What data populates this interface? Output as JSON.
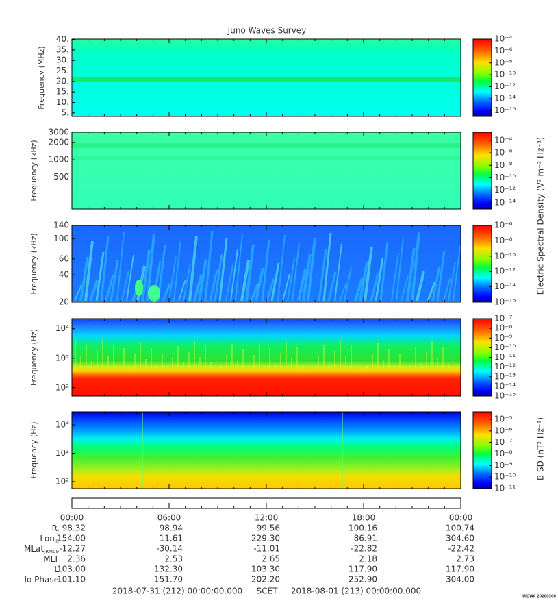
{
  "chart_data": {
    "type": "spectrogram",
    "title": "Juno Waves Survey",
    "panels": [
      {
        "ylabel": "Frequency (MHz)",
        "log": false,
        "ylim": [
          3.3,
          40.2
        ],
        "yticks": [
          {
            "value": 40,
            "label": "40."
          },
          {
            "value": 35,
            "label": "35."
          },
          {
            "value": 30,
            "label": "30."
          },
          {
            "value": 25,
            "label": "25."
          },
          {
            "value": 20,
            "label": "20."
          },
          {
            "value": 15,
            "label": "15."
          },
          {
            "value": 10,
            "label": "10."
          },
          {
            "value": 5,
            "label": "5."
          }
        ],
        "clim": [
          1e-17,
          0.0001
        ],
        "cticks": [
          {
            "value": 0.0001,
            "label": "10⁻⁴"
          },
          {
            "value": 1e-06,
            "label": "10⁻⁶"
          },
          {
            "value": 1e-08,
            "label": "10⁻⁸"
          },
          {
            "value": 1e-10,
            "label": "10⁻¹⁰"
          },
          {
            "value": 1e-12,
            "label": "10⁻¹²"
          },
          {
            "value": 1e-14,
            "label": "10⁻¹⁴"
          },
          {
            "value": 1e-16,
            "label": "10⁻¹⁶"
          }
        ]
      },
      {
        "ylabel": "Frequency (kHz)",
        "log": true,
        "ylim": [
          140,
          3000
        ],
        "yticks": [
          3000,
          2000,
          1000,
          500
        ],
        "clim": [
          1e-15,
          0.002
        ],
        "cticks": [
          {
            "value": 0.0001,
            "label": "10⁻⁴"
          },
          {
            "value": 1e-06,
            "label": "10⁻⁶"
          },
          {
            "value": 1e-08,
            "label": "10⁻⁸"
          },
          {
            "value": 1e-10,
            "label": "10⁻¹⁰"
          },
          {
            "value": 1e-12,
            "label": "10⁻¹²"
          },
          {
            "value": 1e-14,
            "label": "10⁻¹⁴"
          }
        ]
      },
      {
        "ylabel": "Frequency (kHz)",
        "log": true,
        "ylim": [
          20,
          140
        ],
        "yticks": [
          140,
          100,
          60,
          40,
          20
        ],
        "clim": [
          1e-16,
          1e-06
        ],
        "cticks": [
          {
            "value": 1e-06,
            "label": "10⁻⁶"
          },
          {
            "value": 1e-08,
            "label": "10⁻⁸"
          },
          {
            "value": 1e-10,
            "label": "10⁻¹⁰"
          },
          {
            "value": 1e-12,
            "label": "10⁻¹²"
          },
          {
            "value": 1e-14,
            "label": "10⁻¹⁴"
          },
          {
            "value": 1e-16,
            "label": "10⁻¹⁶"
          }
        ]
      },
      {
        "ylabel": "Frequency (Hz)",
        "log": true,
        "ylim": [
          52,
          22000
        ],
        "yticks": [
          {
            "value": 10000,
            "label": "10⁴"
          },
          {
            "value": 1000,
            "label": "10³"
          },
          {
            "value": 100,
            "label": "10²"
          }
        ],
        "clim": [
          1e-15,
          1e-07
        ],
        "cticks": [
          {
            "value": 1e-07,
            "label": "10⁻⁷"
          },
          {
            "value": 1e-08,
            "label": "10⁻⁸"
          },
          {
            "value": 1e-09,
            "label": "10⁻⁹"
          },
          {
            "value": 1e-10,
            "label": "10⁻¹⁰"
          },
          {
            "value": 1e-11,
            "label": "10⁻¹¹"
          },
          {
            "value": 1e-12,
            "label": "10⁻¹²"
          },
          {
            "value": 1e-13,
            "label": "10⁻¹³"
          },
          {
            "value": 1e-14,
            "label": "10⁻¹⁴"
          },
          {
            "value": 1e-15,
            "label": "10⁻¹⁵"
          }
        ]
      },
      {
        "ylabel": "Frequency (Hz)",
        "log": true,
        "ylim": [
          57,
          29000
        ],
        "yticks": [
          {
            "value": 10000,
            "label": "10⁴"
          },
          {
            "value": 1000,
            "label": "10³"
          },
          {
            "value": 100,
            "label": "10²"
          }
        ],
        "clim": [
          1e-11,
          4.5e-05
        ],
        "cticks": [
          {
            "value": 1e-05,
            "label": "10⁻⁵"
          },
          {
            "value": 1e-06,
            "label": "10⁻⁶"
          },
          {
            "value": 1e-07,
            "label": "10⁻⁷"
          },
          {
            "value": 1e-08,
            "label": "10⁻⁸"
          },
          {
            "value": 1e-09,
            "label": "10⁻⁹"
          },
          {
            "value": 1e-10,
            "label": "10⁻¹⁰"
          },
          {
            "value": 1e-11,
            "label": "10⁻¹¹"
          }
        ]
      }
    ],
    "e_colorbar_label": "Electric Spectral Density (V² m⁻² Hz⁻¹)",
    "b_colorbar_label": "B SD (nT² Hz⁻¹)",
    "time_ticks": [
      "00:00",
      "06:00",
      "12:00",
      "18:00",
      "00:00"
    ],
    "ephemeris": [
      {
        "label": "R",
        "sub": "J",
        "values": [
          "98.32",
          "98.94",
          "99.56",
          "100.16",
          "100.74"
        ]
      },
      {
        "label": "Lon",
        "sub": "III",
        "values": [
          "154.00",
          "11.61",
          "229.30",
          "86.91",
          "304.60"
        ]
      },
      {
        "label": "MLat",
        "sub": "JRM09",
        "values": [
          "-12.27",
          "-30.14",
          "-11.01",
          "-22.82",
          "-22.42"
        ]
      },
      {
        "label": "MLT",
        "values": [
          "2.36",
          "2.53",
          "2.65",
          "2.18",
          "2.73"
        ]
      },
      {
        "label": "L",
        "values": [
          "103.00",
          "132.30",
          "103.30",
          "117.90",
          "117.90"
        ]
      },
      {
        "label": "Io Phase",
        "values": [
          "101.10",
          "151.70",
          "202.20",
          "252.90",
          "304.00"
        ]
      }
    ],
    "footer_start": "2018-07-31 (212) 00:00:00.000",
    "footer_center": "SCET",
    "footer_end": "2018-08-01 (213) 00:00:00.000",
    "credit": "UIOWA 20200306"
  }
}
